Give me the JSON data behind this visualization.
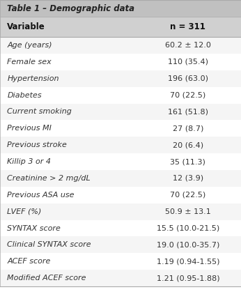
{
  "title": "Table 1 – Demographic data",
  "header_col1": "Variable",
  "header_col2": "n = 311",
  "rows": [
    [
      "Age (years)",
      "60.2 ± 12.0"
    ],
    [
      "Female sex",
      "110 (35.4)"
    ],
    [
      "Hypertension",
      "196 (63.0)"
    ],
    [
      "Diabetes",
      "70 (22.5)"
    ],
    [
      "Current smoking",
      "161 (51.8)"
    ],
    [
      "Previous MI",
      "27 (8.7)"
    ],
    [
      "Previous stroke",
      "20 (6.4)"
    ],
    [
      "Killip 3 or 4",
      "35 (11.3)"
    ],
    [
      "Creatinine > 2 mg/dL",
      "12 (3.9)"
    ],
    [
      "Previous ASA use",
      "70 (22.5)"
    ],
    [
      "LVEF (%)",
      "50.9 ± 13.1"
    ],
    [
      "SYNTAX score",
      "15.5 (10.0-21.5)"
    ],
    [
      "Clinical SYNTAX score",
      "19.0 (10.0-35.7)"
    ],
    [
      "ACEF score",
      "1.19 (0.94-1.55)"
    ],
    [
      "Modified ACEF score",
      "1.21 (0.95-1.88)"
    ]
  ],
  "title_bg": "#c0c0c0",
  "header_bg": "#d0d0d0",
  "row_bg_odd": "#f5f5f5",
  "row_bg_even": "#ffffff",
  "border_color": "#aaaaaa",
  "title_fontsize": 8.5,
  "header_fontsize": 8.5,
  "row_fontsize": 8.0,
  "title_color": "#222222",
  "header_color": "#111111",
  "row_color": "#333333"
}
